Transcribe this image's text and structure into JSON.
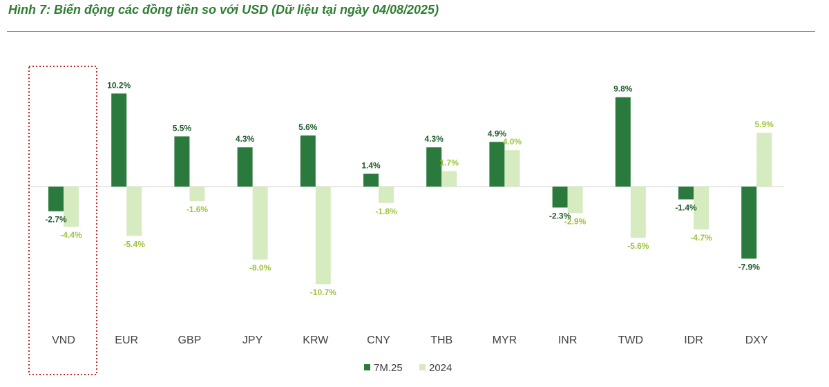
{
  "title": "Hình 7: Biến động các đồng tiền so với USD (Dữ liệu tại ngày 04/08/2025)",
  "colors": {
    "series_7m": "#2b7a3d",
    "series_2024": "#d7ebc0",
    "highlight": "#c62828",
    "title": "#2e7d32"
  },
  "chart_data": {
    "type": "bar",
    "categories": [
      "VND",
      "EUR",
      "GBP",
      "JPY",
      "KRW",
      "CNY",
      "THB",
      "MYR",
      "INR",
      "TWD",
      "IDR",
      "DXY"
    ],
    "series": [
      {
        "name": "7M.25",
        "values": [
          -2.7,
          10.2,
          5.5,
          4.3,
          5.6,
          1.4,
          4.3,
          4.9,
          -2.3,
          9.8,
          -1.4,
          -7.9
        ],
        "labels": [
          "-2.7%",
          "10.2%",
          "5.5%",
          "4.3%",
          "5.6%",
          "1.4%",
          "4.3%",
          "4.9%",
          "-2.3%",
          "9.8%",
          "-1.4%",
          "-7.9%"
        ]
      },
      {
        "name": "2024",
        "values": [
          -4.4,
          -5.4,
          -1.6,
          -8.0,
          -10.7,
          -1.8,
          1.7,
          4.0,
          -2.9,
          -5.6,
          -4.7,
          5.9
        ],
        "labels": [
          "-4.4%",
          "-5.4%",
          "-1.6%",
          "-8.0%",
          "-10.7%",
          "-1.8%",
          "1.7%",
          "4.0%",
          "-2.9%",
          "-5.6%",
          "-4.7%",
          "5.9%"
        ]
      }
    ],
    "highlighted_category": "VND",
    "legend_position": "bottom-center",
    "grid": false
  }
}
